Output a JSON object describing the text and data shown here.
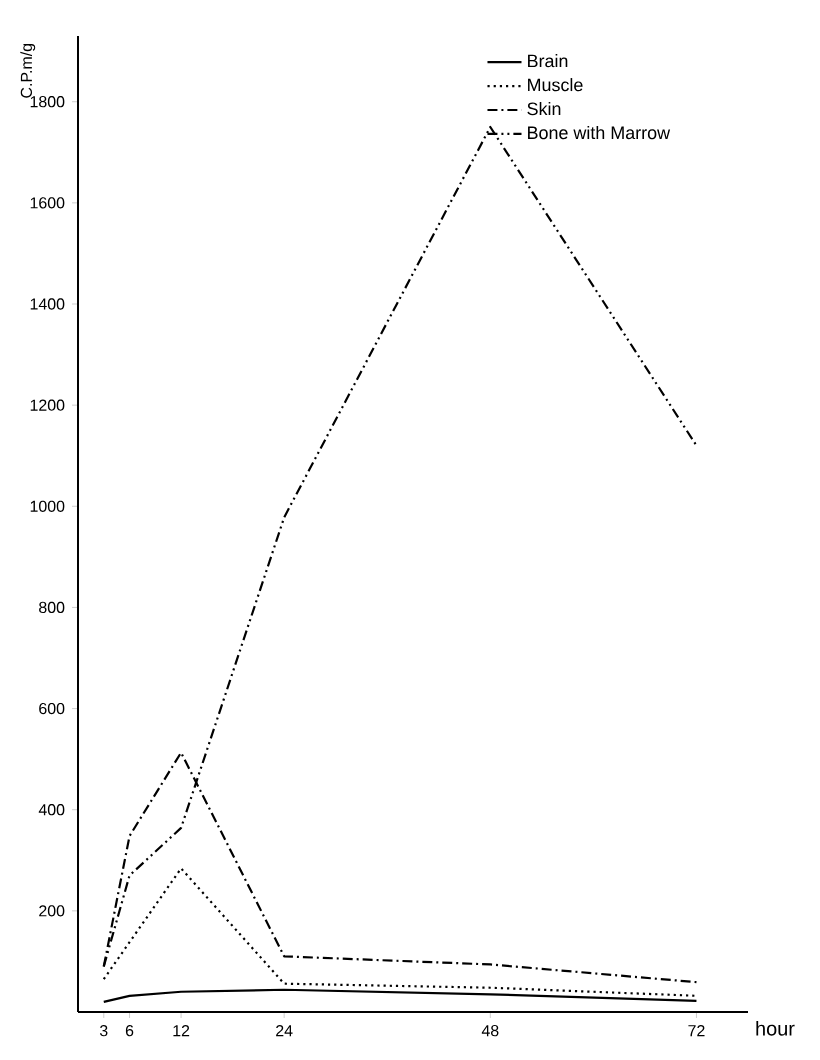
{
  "chart_data": {
    "type": "line",
    "xlabel": "hour",
    "ylabel": "C.P.m/g",
    "x": [
      3,
      6,
      12,
      24,
      48,
      72
    ],
    "series": [
      {
        "name": "Brain",
        "color": "#000000",
        "line_style": "solid",
        "values": [
          20,
          32,
          40,
          44,
          35,
          22
        ]
      },
      {
        "name": "Muscle",
        "color": "#000000",
        "line_style": "dotted",
        "values": [
          65,
          138,
          284,
          56,
          48,
          32
        ]
      },
      {
        "name": "Skin",
        "color": "#000000",
        "line_style": "dashdot",
        "values": [
          90,
          348,
          513,
          110,
          94,
          59
        ]
      },
      {
        "name": "Bone with Marrow",
        "color": "#000000",
        "line_style": "dashdotdot",
        "values": [
          90,
          270,
          364,
          978,
          1750,
          1120
        ]
      }
    ],
    "xlim": [
      0,
      78
    ],
    "ylim": [
      0,
      1930
    ],
    "xticks": [
      3,
      6,
      12,
      24,
      48,
      72
    ],
    "yticks": [
      200,
      400,
      600,
      800,
      1000,
      1200,
      1400,
      1600,
      1800
    ],
    "legend": "top right",
    "grid": false,
    "marker": "none"
  }
}
